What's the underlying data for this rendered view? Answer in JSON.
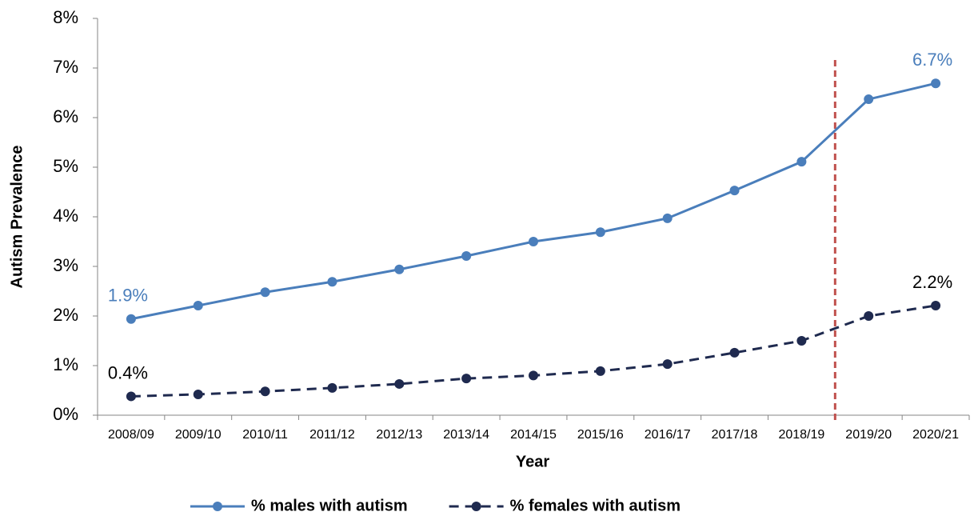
{
  "chart_data": {
    "type": "line",
    "x_label": "Year",
    "y_label": "Autism Prevalence",
    "categories": [
      "2008/09",
      "2009/10",
      "2010/11",
      "2011/12",
      "2012/13",
      "2013/14",
      "2014/15",
      "2015/16",
      "2016/17",
      "2017/18",
      "2018/19",
      "2019/20",
      "2020/21"
    ],
    "series": [
      {
        "name": "% males with autism",
        "color": "#4a7ebb",
        "dash": false,
        "values": [
          1.94,
          2.21,
          2.48,
          2.69,
          2.94,
          3.21,
          3.5,
          3.69,
          3.97,
          4.53,
          5.11,
          6.37,
          6.69
        ],
        "value_labels": [
          "1.9%",
          null,
          null,
          null,
          null,
          null,
          null,
          null,
          null,
          null,
          null,
          null,
          "6.7%"
        ]
      },
      {
        "name": "% females with autism",
        "color": "#1f2a4f",
        "dash": true,
        "values": [
          0.38,
          0.42,
          0.48,
          0.55,
          0.63,
          0.74,
          0.8,
          0.89,
          1.03,
          1.26,
          1.5,
          2.0,
          2.21
        ],
        "value_labels": [
          "0.4%",
          null,
          null,
          null,
          null,
          null,
          null,
          null,
          null,
          null,
          null,
          null,
          "2.2%"
        ]
      }
    ],
    "ylim": [
      0,
      8
    ],
    "yticks": [
      {
        "value": 0,
        "label": "0%"
      },
      {
        "value": 1,
        "label": "1%"
      },
      {
        "value": 2,
        "label": "2%"
      },
      {
        "value": 3,
        "label": "3%"
      },
      {
        "value": 4,
        "label": "4%"
      },
      {
        "value": 5,
        "label": "5%"
      },
      {
        "value": 6,
        "label": "6%"
      },
      {
        "value": 7,
        "label": "7%"
      },
      {
        "value": 8,
        "label": "8%"
      }
    ],
    "grid": false,
    "legend": "bottom"
  }
}
